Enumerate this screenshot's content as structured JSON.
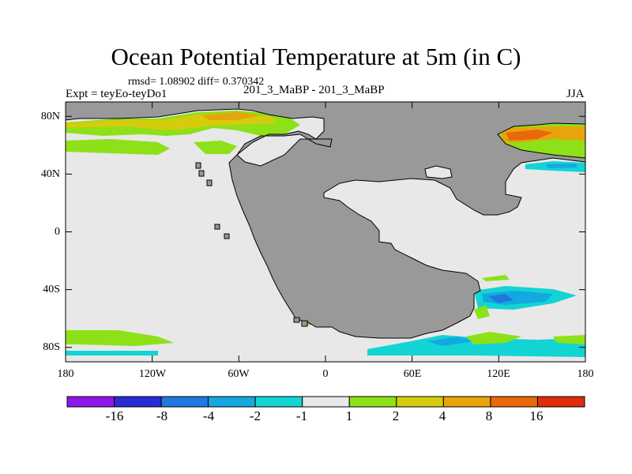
{
  "chart_data": {
    "type": "heatmap",
    "title": "Ocean Potential Temperature at 5m (in C)",
    "stats": "rmsd= 1.08902  diff= 0.370342",
    "left_label": "Expt = teyEo-teyDo1",
    "center_label": "201_3_MaBP - 201_3_MaBP",
    "right_label": "JJA",
    "x_ticks": [
      "180",
      "120W",
      "60W",
      "0",
      "60E",
      "120E",
      "180"
    ],
    "y_ticks": [
      "80N",
      "40N",
      "0",
      "40S",
      "80S"
    ],
    "x_range": [
      -180,
      180
    ],
    "y_range": [
      -90,
      90
    ],
    "units": "C",
    "colorbar": {
      "labels": [
        "-16",
        "-8",
        "-4",
        "-2",
        "-1",
        "1",
        "2",
        "4",
        "8",
        "16"
      ],
      "colors": [
        "#8b18e8",
        "#2a2ad6",
        "#1f78e0",
        "#14a8e0",
        "#12d4d4",
        "#e8e8e8",
        "#8ee018",
        "#d4cc0c",
        "#e8a40c",
        "#e8680c",
        "#e02c0c"
      ]
    },
    "anomaly_regions": [
      {
        "name": "arctic-atlantic-warm",
        "lon": [
          -180,
          -20
        ],
        "lat": [
          62,
          76
        ],
        "value": 3
      },
      {
        "name": "arctic-pacific-warm",
        "lon": [
          120,
          180
        ],
        "lat": [
          56,
          74
        ],
        "value": 6
      },
      {
        "name": "north-pacific-cold",
        "lon": [
          140,
          180
        ],
        "lat": [
          42,
          50
        ],
        "value": -1.5
      },
      {
        "name": "south-indian-cold",
        "lon": [
          105,
          165
        ],
        "lat": [
          -50,
          -38
        ],
        "value": -3
      },
      {
        "name": "southern-ocean-cold",
        "lon": [
          30,
          180
        ],
        "lat": [
          -86,
          -74
        ],
        "value": -1.5
      },
      {
        "name": "southern-ocean-warm",
        "lon": [
          -180,
          -110
        ],
        "lat": [
          -76,
          -66
        ],
        "value": 1.5
      }
    ],
    "land_color": "#999999",
    "no_change_color": "#e8e8e8"
  }
}
